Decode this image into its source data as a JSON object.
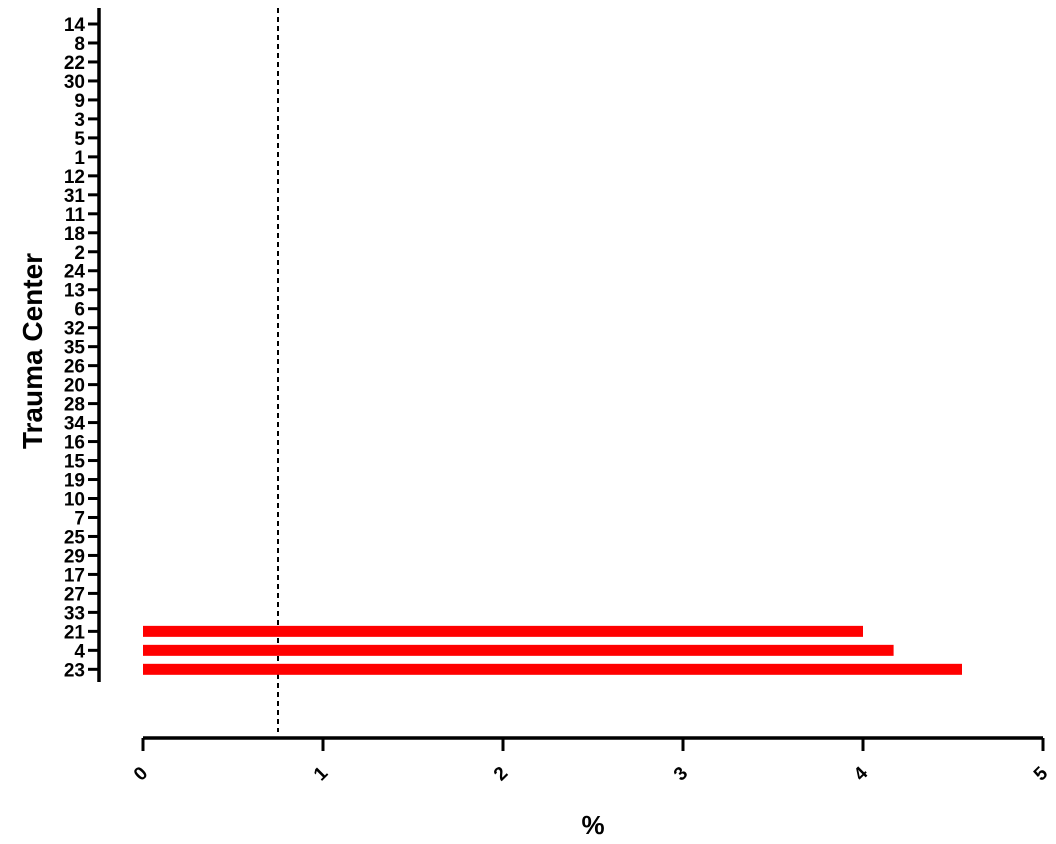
{
  "chart_data": {
    "type": "bar",
    "orientation": "horizontal",
    "title": "",
    "xlabel": "%",
    "ylabel": "Trauma Center",
    "xlim": [
      0,
      5
    ],
    "xticks": [
      "0",
      "1",
      "2",
      "3",
      "4",
      "5"
    ],
    "categories": [
      "14",
      "8",
      "22",
      "30",
      "9",
      "3",
      "5",
      "1",
      "12",
      "31",
      "11",
      "18",
      "2",
      "24",
      "13",
      "6",
      "32",
      "35",
      "26",
      "20",
      "28",
      "34",
      "16",
      "15",
      "19",
      "10",
      "7",
      "25",
      "29",
      "17",
      "27",
      "33",
      "21",
      "4",
      "23"
    ],
    "values": [
      0,
      0,
      0,
      0,
      0,
      0,
      0,
      0,
      0,
      0,
      0,
      0,
      0,
      0,
      0,
      0,
      0,
      0,
      0,
      0,
      0,
      0,
      0,
      0,
      0,
      0,
      0,
      0,
      0,
      0,
      0,
      0,
      4.0,
      4.17,
      4.55
    ],
    "reference_line": {
      "x": 0.75,
      "style": "dashed"
    },
    "bar_color": "#ff0000",
    "grid": false,
    "legend": "none"
  }
}
